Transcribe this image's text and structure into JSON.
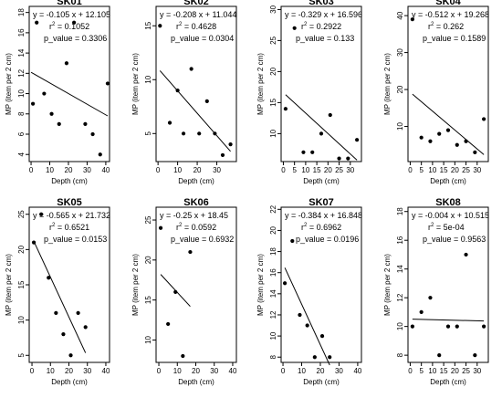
{
  "chart_data": [
    {
      "type": "scatter",
      "title": "SK01",
      "equation": "y = -0.105 x + 12.105",
      "r2_prefix": "r",
      "r2_sup": "2",
      "r2_value": " = 0.1052",
      "pvalue": "p_value = 0.3306",
      "xlabel": "Depth (cm)",
      "ylabel": "MP (item per 2 cm)",
      "xlim": [
        -1,
        42
      ],
      "ylim": [
        3.3,
        18.6
      ],
      "xticks": [
        0,
        10,
        20,
        30,
        40
      ],
      "yticks": [
        4,
        6,
        8,
        10,
        12,
        14,
        16,
        18
      ],
      "x": [
        1,
        3,
        7,
        11,
        15,
        19,
        23,
        29,
        33,
        37,
        41
      ],
      "y": [
        9,
        17,
        10,
        8,
        7,
        13,
        17,
        7,
        6,
        4,
        11
      ],
      "line": {
        "slope": -0.105,
        "intercept": 12.105,
        "x_range": [
          0,
          41
        ]
      }
    },
    {
      "type": "scatter",
      "title": "SK02",
      "equation": "y = -0.208 x + 11.044",
      "r2_prefix": "r",
      "r2_sup": "2",
      "r2_value": " = 0.4628",
      "pvalue": "p_value = 0.0304",
      "xlabel": "Depth (cm)",
      "ylabel": "MP (item per 2 cm)",
      "xlim": [
        -1,
        40
      ],
      "ylim": [
        2.4,
        16.8
      ],
      "xticks": [
        0,
        10,
        20,
        30
      ],
      "yticks": [
        5,
        10,
        15
      ],
      "x": [
        1,
        6,
        10,
        13,
        17,
        21,
        25,
        29,
        33,
        37
      ],
      "y": [
        15,
        6,
        9,
        5,
        11,
        5,
        8,
        5,
        3,
        4
      ],
      "line": {
        "slope": -0.208,
        "intercept": 11.044,
        "x_range": [
          1,
          37
        ]
      }
    },
    {
      "type": "scatter",
      "title": "SK03",
      "equation": "y = -0.329 x + 16.596",
      "r2_prefix": "r",
      "r2_sup": "2",
      "r2_value": " = 0.2922",
      "pvalue": "p_value = 0.133",
      "xlabel": "Depth (cm)",
      "ylabel": "MP (item per 2 cm)",
      "xlim": [
        -1,
        35
      ],
      "ylim": [
        5.5,
        30.5
      ],
      "xticks": [
        0,
        5,
        10,
        15,
        20,
        25,
        30
      ],
      "yticks": [
        10,
        15,
        20,
        25,
        30
      ],
      "x": [
        1,
        5,
        9,
        13,
        17,
        21,
        25,
        29,
        33
      ],
      "y": [
        14,
        27,
        7,
        7,
        10,
        13,
        6,
        6,
        9
      ],
      "line": {
        "slope": -0.329,
        "intercept": 16.596,
        "x_range": [
          1,
          33
        ]
      }
    },
    {
      "type": "scatter",
      "title": "SK04",
      "equation": "y = -0.512 x + 19.268",
      "r2_prefix": "r",
      "r2_sup": "2",
      "r2_value": " = 0.262",
      "pvalue": "p_value = 0.1589",
      "xlabel": "Depth (cm)",
      "ylabel": "MP (item per 2 cm)",
      "xlim": [
        -1,
        35
      ],
      "ylim": [
        0.5,
        42.5
      ],
      "xticks": [
        0,
        5,
        10,
        15,
        20,
        25,
        30
      ],
      "yticks": [
        10,
        20,
        30,
        40
      ],
      "x": [
        1,
        5,
        9,
        13,
        17,
        21,
        25,
        29,
        33
      ],
      "y": [
        39,
        7,
        6,
        8,
        9,
        5,
        6,
        3,
        12
      ],
      "line": {
        "slope": -0.512,
        "intercept": 19.268,
        "x_range": [
          1,
          33
        ]
      }
    },
    {
      "type": "scatter",
      "title": "SK05",
      "equation": "y = -0.565 x + 21.732",
      "r2_prefix": "r",
      "r2_sup": "2",
      "r2_value": " = 0.6521",
      "pvalue": "p_value = 0.0153",
      "xlabel": "Depth (cm)",
      "ylabel": "MP (item per 2 cm)",
      "xlim": [
        -1.5,
        42
      ],
      "ylim": [
        4,
        26
      ],
      "xticks": [
        0,
        10,
        20,
        30,
        40
      ],
      "yticks": [
        5,
        10,
        15,
        20,
        25
      ],
      "x": [
        1,
        5,
        9,
        13,
        17,
        21,
        25,
        29
      ],
      "y": [
        21,
        25,
        16,
        11,
        8,
        5,
        11,
        9
      ],
      "line": {
        "slope": -0.565,
        "intercept": 21.732,
        "x_range": [
          1,
          29
        ]
      }
    },
    {
      "type": "scatter",
      "title": "SK06",
      "equation": "y = -0.25 x + 18.45",
      "r2_prefix": "r",
      "r2_sup": "2",
      "r2_value": " = 0.0592",
      "pvalue": "p_value = 0.6932",
      "xlabel": "Depth (cm)",
      "ylabel": "MP (item per 2 cm)",
      "xlim": [
        -1.5,
        42
      ],
      "ylim": [
        7.2,
        26.6
      ],
      "xticks": [
        0,
        10,
        20,
        30,
        40
      ],
      "yticks": [
        10,
        15,
        20,
        25
      ],
      "x": [
        1,
        5,
        9,
        13,
        17
      ],
      "y": [
        24,
        12,
        16,
        8,
        21
      ],
      "line": {
        "slope": -0.25,
        "intercept": 18.45,
        "x_range": [
          1,
          17
        ]
      }
    },
    {
      "type": "scatter",
      "title": "SK07",
      "equation": "y = -0.384 x + 16.848",
      "r2_prefix": "r",
      "r2_sup": "2",
      "r2_value": " = 0.6962",
      "pvalue": "p_value = 0.0196",
      "xlabel": "Depth (cm)",
      "ylabel": "MP (item per 2 cm)",
      "xlim": [
        -1,
        42
      ],
      "ylim": [
        7.5,
        22.2
      ],
      "xticks": [
        0,
        10,
        20,
        30,
        40
      ],
      "yticks": [
        8,
        10,
        12,
        14,
        16,
        18,
        20,
        22
      ],
      "x": [
        1,
        5,
        9,
        13,
        17,
        21,
        25
      ],
      "y": [
        15,
        19,
        12,
        11,
        8,
        10,
        8
      ],
      "line": {
        "slope": -0.384,
        "intercept": 16.848,
        "x_range": [
          1,
          25
        ]
      }
    },
    {
      "type": "scatter",
      "title": "SK08",
      "equation": "y = -0.004 x + 10.515",
      "r2_prefix": "r",
      "r2_sup": "2",
      "r2_value": " = 5e-04",
      "pvalue": "p_value = 0.9563",
      "xlabel": "Depth (cm)",
      "ylabel": "MP (item per 2 cm)",
      "xlim": [
        -1,
        35
      ],
      "ylim": [
        7.5,
        18.3
      ],
      "xticks": [
        0,
        5,
        10,
        15,
        20,
        25,
        30
      ],
      "yticks": [
        8,
        10,
        12,
        14,
        16,
        18
      ],
      "x": [
        1,
        5,
        9,
        13,
        17,
        21,
        25,
        29,
        33
      ],
      "y": [
        10,
        11,
        12,
        8,
        10,
        10,
        15,
        8,
        10
      ],
      "line": {
        "slope": -0.004,
        "intercept": 10.515,
        "x_range": [
          1,
          33
        ]
      }
    }
  ]
}
